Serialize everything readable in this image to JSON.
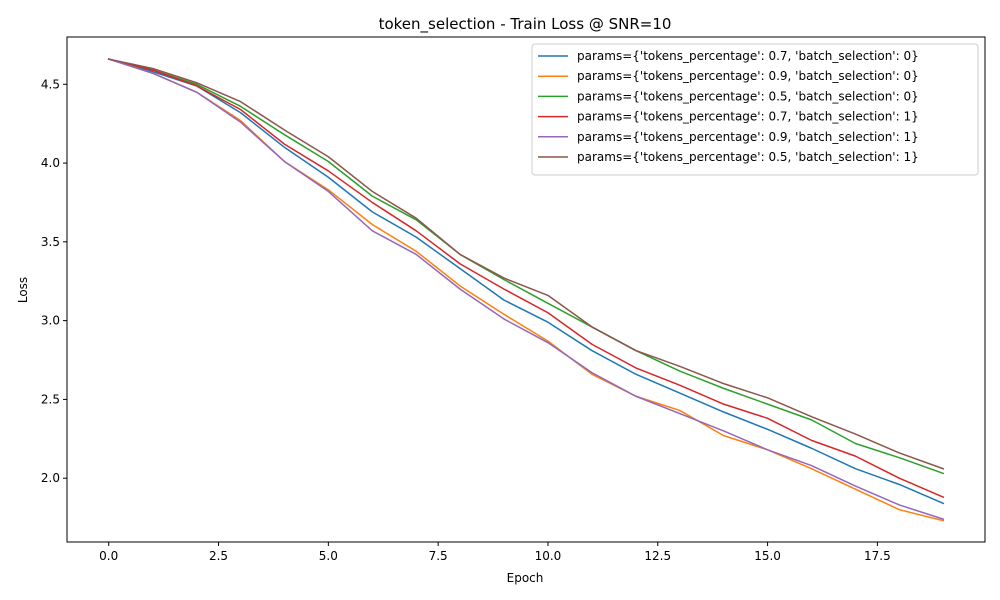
{
  "chart_data": {
    "type": "line",
    "title": "token_selection - Train Loss @ SNR=10",
    "xlabel": "Epoch",
    "ylabel": "Loss",
    "xlim": [
      -0.95,
      19.95
    ],
    "ylim": [
      1.595,
      4.8
    ],
    "xticks": [
      0.0,
      2.5,
      5.0,
      7.5,
      10.0,
      12.5,
      15.0,
      17.5
    ],
    "xtick_labels": [
      "0.0",
      "2.5",
      "5.0",
      "7.5",
      "10.0",
      "12.5",
      "15.0",
      "17.5"
    ],
    "yticks": [
      2.0,
      2.5,
      3.0,
      3.5,
      4.0,
      4.5
    ],
    "ytick_labels": [
      "2.0",
      "2.5",
      "3.0",
      "3.5",
      "4.0",
      "4.5"
    ],
    "grid": false,
    "legend_position": "top-right",
    "x": [
      0,
      1,
      2,
      3,
      4,
      5,
      6,
      7,
      8,
      9,
      10,
      11,
      12,
      13,
      14,
      15,
      16,
      17,
      18,
      19
    ],
    "series": [
      {
        "name": "params={'tokens_percentage': 0.7, 'batch_selection': 0}",
        "color": "#1f77b4",
        "values": [
          4.66,
          4.58,
          4.49,
          4.32,
          4.1,
          3.91,
          3.69,
          3.53,
          3.33,
          3.13,
          2.99,
          2.81,
          2.66,
          2.54,
          2.42,
          2.31,
          2.19,
          2.06,
          1.96,
          1.84
        ]
      },
      {
        "name": "params={'tokens_percentage': 0.9, 'batch_selection': 0}",
        "color": "#ff7f0e",
        "values": [
          4.66,
          4.57,
          4.45,
          4.27,
          4.01,
          3.83,
          3.61,
          3.44,
          3.22,
          3.04,
          2.87,
          2.66,
          2.52,
          2.43,
          2.27,
          2.18,
          2.06,
          1.93,
          1.8,
          1.73
        ]
      },
      {
        "name": "params={'tokens_percentage': 0.5, 'batch_selection': 0}",
        "color": "#2ca02c",
        "values": [
          4.66,
          4.59,
          4.5,
          4.36,
          4.18,
          4.01,
          3.79,
          3.64,
          3.42,
          3.26,
          3.11,
          2.96,
          2.81,
          2.68,
          2.57,
          2.47,
          2.37,
          2.22,
          2.13,
          2.03
        ]
      },
      {
        "name": "params={'tokens_percentage': 0.7, 'batch_selection': 1}",
        "color": "#d62728",
        "values": [
          4.66,
          4.59,
          4.49,
          4.34,
          4.12,
          3.95,
          3.75,
          3.57,
          3.36,
          3.2,
          3.05,
          2.85,
          2.7,
          2.59,
          2.47,
          2.38,
          2.24,
          2.14,
          2.0,
          1.88
        ]
      },
      {
        "name": "params={'tokens_percentage': 0.9, 'batch_selection': 1}",
        "color": "#9467bd",
        "values": [
          4.66,
          4.57,
          4.45,
          4.26,
          4.01,
          3.82,
          3.57,
          3.42,
          3.2,
          3.01,
          2.86,
          2.67,
          2.52,
          2.41,
          2.3,
          2.18,
          2.08,
          1.95,
          1.83,
          1.74
        ]
      },
      {
        "name": "params={'tokens_percentage': 0.5, 'batch_selection': 1}",
        "color": "#8c564b",
        "values": [
          4.66,
          4.6,
          4.51,
          4.39,
          4.21,
          4.04,
          3.82,
          3.65,
          3.42,
          3.27,
          3.16,
          2.96,
          2.81,
          2.71,
          2.6,
          2.51,
          2.39,
          2.28,
          2.16,
          2.06
        ]
      }
    ]
  }
}
